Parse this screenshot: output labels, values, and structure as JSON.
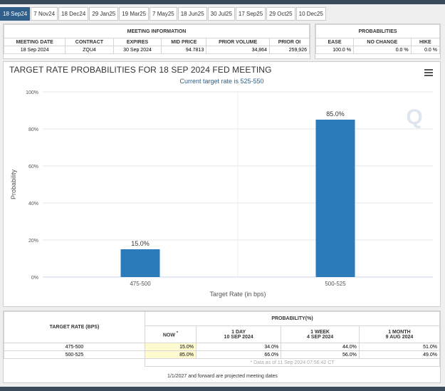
{
  "tabs": [
    "18 Sep24",
    "7 Nov24",
    "18 Dec24",
    "29 Jan25",
    "19 Mar25",
    "7 May25",
    "18 Jun25",
    "30 Jul25",
    "17 Sep25",
    "29 Oct25",
    "10 Dec25"
  ],
  "meeting_info": {
    "header": "MEETING INFORMATION",
    "columns": [
      "MEETING DATE",
      "CONTRACT",
      "EXPIRES",
      "MID PRICE",
      "PRIOR VOLUME",
      "PRIOR OI"
    ],
    "row": [
      "18 Sep 2024",
      "ZQU4",
      "30 Sep 2024",
      "94.7813",
      "34,864",
      "259,926"
    ]
  },
  "probabilities": {
    "header": "PROBABILITIES",
    "columns": [
      "EASE",
      "NO CHANGE",
      "HIKE"
    ],
    "row": [
      "100.0 %",
      "0.0 %",
      "0.0 %"
    ]
  },
  "chart": {
    "title": "TARGET RATE PROBABILITIES FOR 18 SEP 2024 FED MEETING",
    "subtitle": "Current target rate is 525-550",
    "menu_icon": "hamburger-menu-icon",
    "watermark": "Q"
  },
  "chart_data": {
    "type": "bar",
    "categories": [
      "475-500",
      "500-525"
    ],
    "values": [
      15.0,
      85.0
    ],
    "data_labels": [
      "15.0%",
      "85.0%"
    ],
    "xlabel": "Target Rate (in bps)",
    "ylabel": "Probability",
    "ylim": [
      0,
      100
    ],
    "yticks": [
      "0%",
      "20%",
      "40%",
      "60%",
      "80%",
      "100%"
    ],
    "bar_color": "#2b7bba",
    "grid": true
  },
  "bottom_table": {
    "rate_header": "TARGET RATE (BPS)",
    "prob_header": "PROBABILITY(%)",
    "now_label": "NOW",
    "now_mark": "*",
    "col_1day": [
      "1 DAY",
      "10 SEP 2024"
    ],
    "col_1week": [
      "1 WEEK",
      "4 SEP 2024"
    ],
    "col_1month": [
      "1 MONTH",
      "9 AUG 2024"
    ],
    "rows": [
      {
        "rate": "475-500",
        "now": "15.0%",
        "day": "34.0%",
        "week": "44.0%",
        "month": "51.0%"
      },
      {
        "rate": "500-525",
        "now": "85.0%",
        "day": "66.0%",
        "week": "56.0%",
        "month": "49.0%"
      }
    ],
    "data_note": "* Data as of 11 Sep 2024 07:56:42 CT"
  },
  "footer_note": "1/1/2027 and forward are projected meeting dates"
}
